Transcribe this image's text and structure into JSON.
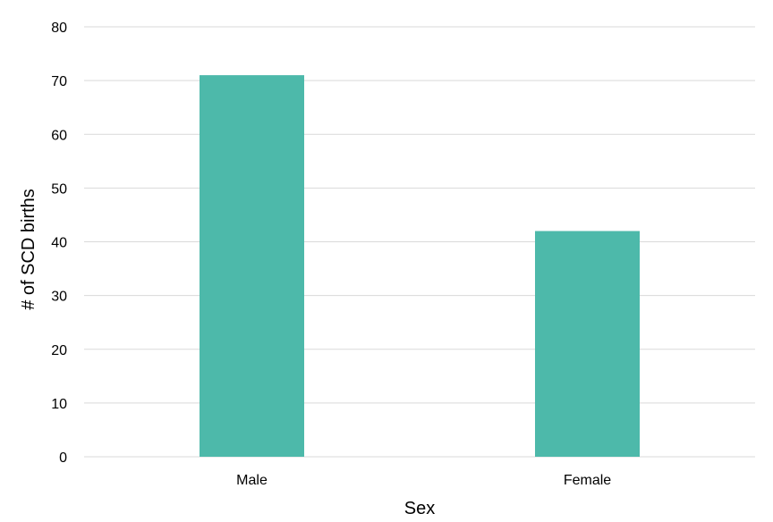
{
  "chart_data": {
    "type": "bar",
    "categories": [
      "Male",
      "Female"
    ],
    "values": [
      71,
      42
    ],
    "title": "",
    "xlabel": "Sex",
    "ylabel": "# of SCD births",
    "ylim": [
      0,
      80
    ],
    "yticks": [
      "0",
      "10",
      "20",
      "30",
      "40",
      "50",
      "60",
      "70",
      "80"
    ],
    "grid": true,
    "legend": "none",
    "bar_color": "#4db9aa"
  }
}
